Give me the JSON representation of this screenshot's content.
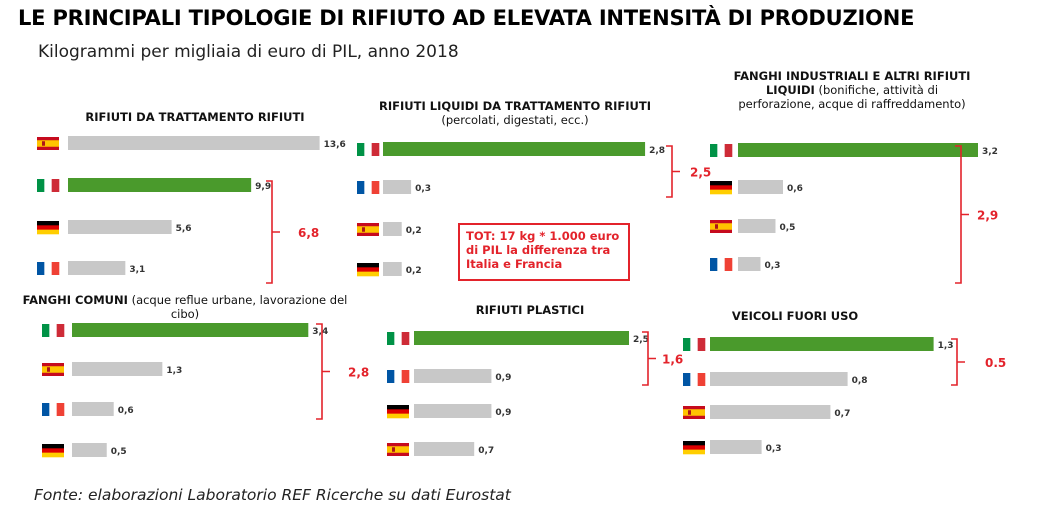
{
  "title": "LE PRINCIPALI TIPOLOGIE DI RIFIUTO AD ELEVATA INTENSITÀ DI PRODUZIONE",
  "subtitle": "Kilogrammi per migliaia di euro di PIL, anno 2018",
  "source": "Fonte: elaborazioni Laboratorio REF Ricerche su dati Eurostat",
  "tot_note": "TOT: 17 kg * 1.000 euro di PIL la differenza tra Italia e Francia",
  "colors": {
    "italy": "#4a9a2c",
    "other": "#c8c8c8",
    "accent": "#e3232b"
  },
  "chart_data": [
    {
      "type": "bar",
      "title_bold": "RIFIUTI DA TRATTAMENTO RIFIUTI",
      "title_regular": "",
      "categories": [
        "Spagna",
        "Italia",
        "Germania",
        "Francia"
      ],
      "values": [
        13.6,
        9.9,
        5.6,
        3.1
      ],
      "value_labels": [
        "13,6",
        "9,9",
        "5,6",
        "3,1"
      ],
      "difference_label": "6,8",
      "highlight": "Italia"
    },
    {
      "type": "bar",
      "title_bold": "RIFIUTI LIQUIDI DA TRATTAMENTO RIFIUTI",
      "title_regular": "(percolati, digestati, ecc.)",
      "categories": [
        "Italia",
        "Francia",
        "Spagna",
        "Germania"
      ],
      "values": [
        2.8,
        0.3,
        0.2,
        0.2
      ],
      "value_labels": [
        "2,8",
        "0,3",
        "0,2",
        "0,2"
      ],
      "difference_label": "2,5",
      "highlight": "Italia"
    },
    {
      "type": "bar",
      "title_bold": "FANGHI INDUSTRIALI E ALTRI RIFIUTI LIQUIDI",
      "title_regular": "(bonifiche, attività di perforazione, acque di raffreddamento)",
      "categories": [
        "Italia",
        "Germania",
        "Spagna",
        "Francia"
      ],
      "values": [
        3.2,
        0.6,
        0.5,
        0.3
      ],
      "value_labels": [
        "3,2",
        "0,6",
        "0,5",
        "0,3"
      ],
      "difference_label": "2,9",
      "highlight": "Italia"
    },
    {
      "type": "bar",
      "title_bold": "FANGHI COMUNI",
      "title_regular": "(acque reflue urbane, lavorazione del cibo)",
      "categories": [
        "Italia",
        "Spagna",
        "Francia",
        "Germania"
      ],
      "values": [
        3.4,
        1.3,
        0.6,
        0.5
      ],
      "value_labels": [
        "3,4",
        "1,3",
        "0,6",
        "0,5"
      ],
      "difference_label": "2,8",
      "highlight": "Italia"
    },
    {
      "type": "bar",
      "title_bold": "RIFIUTI PLASTICI",
      "title_regular": "",
      "categories": [
        "Italia",
        "Francia",
        "Germania",
        "Spagna"
      ],
      "values": [
        2.5,
        0.9,
        0.9,
        0.7
      ],
      "value_labels": [
        "2,5",
        "0,9",
        "0,9",
        "0,7"
      ],
      "difference_label": "1,6",
      "highlight": "Italia"
    },
    {
      "type": "bar",
      "title_bold": "VEICOLI FUORI USO",
      "title_regular": "",
      "categories": [
        "Italia",
        "Francia",
        "Spagna",
        "Germania"
      ],
      "values": [
        1.3,
        0.8,
        0.7,
        0.3
      ],
      "value_labels": [
        "1,3",
        "0,8",
        "0,7",
        "0,3"
      ],
      "difference_label": "0.5",
      "highlight": "Italia"
    }
  ]
}
